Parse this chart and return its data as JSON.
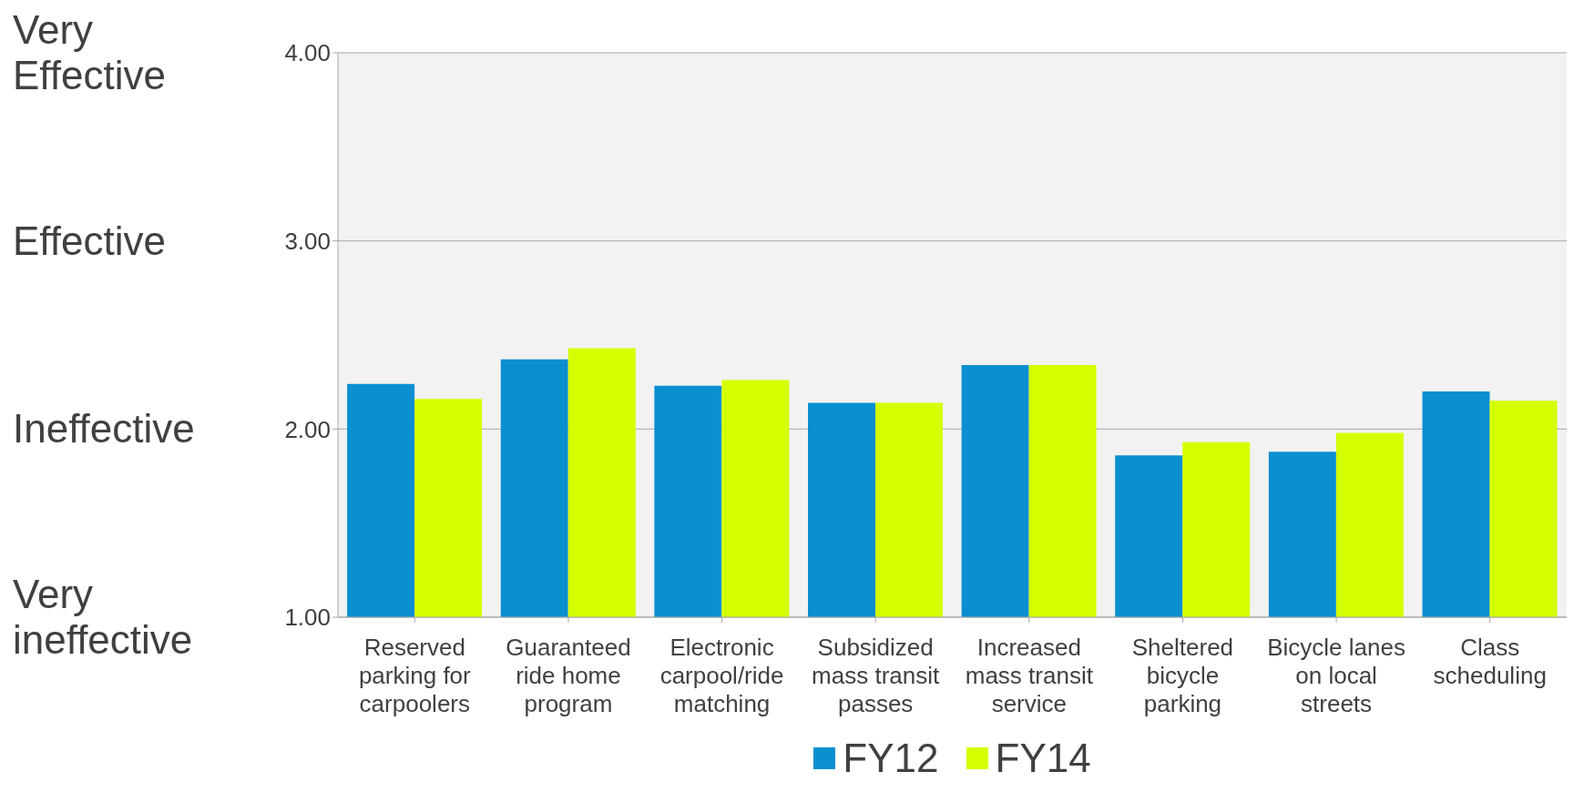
{
  "chart_data": {
    "type": "bar",
    "categories": [
      "Reserved parking for carpoolers",
      "Guaranteed ride home program",
      "Electronic carpool/ride matching",
      "Subsidized mass transit passes",
      "Increased mass transit service",
      "Sheltered bicycle parking",
      "Bicycle lanes on local streets",
      "Class scheduling"
    ],
    "series": [
      {
        "name": "FY12",
        "color": "#0a8fd0",
        "values": [
          2.24,
          2.37,
          2.23,
          2.14,
          2.34,
          1.86,
          1.88,
          2.2
        ]
      },
      {
        "name": "FY14",
        "color": "#d4ff00",
        "values": [
          2.16,
          2.43,
          2.26,
          2.14,
          2.34,
          1.93,
          1.98,
          2.15
        ]
      }
    ],
    "ylim": [
      1,
      4
    ],
    "yticks": [
      {
        "value": 1,
        "label": "1.00"
      },
      {
        "value": 2,
        "label": "2.00"
      },
      {
        "value": 3,
        "label": "3.00"
      },
      {
        "value": 4,
        "label": "4.00"
      }
    ],
    "annotations": [
      "Very Effective",
      "Effective",
      "Ineffective",
      "Very ineffective"
    ],
    "grid": "y",
    "legend": "bottom"
  }
}
